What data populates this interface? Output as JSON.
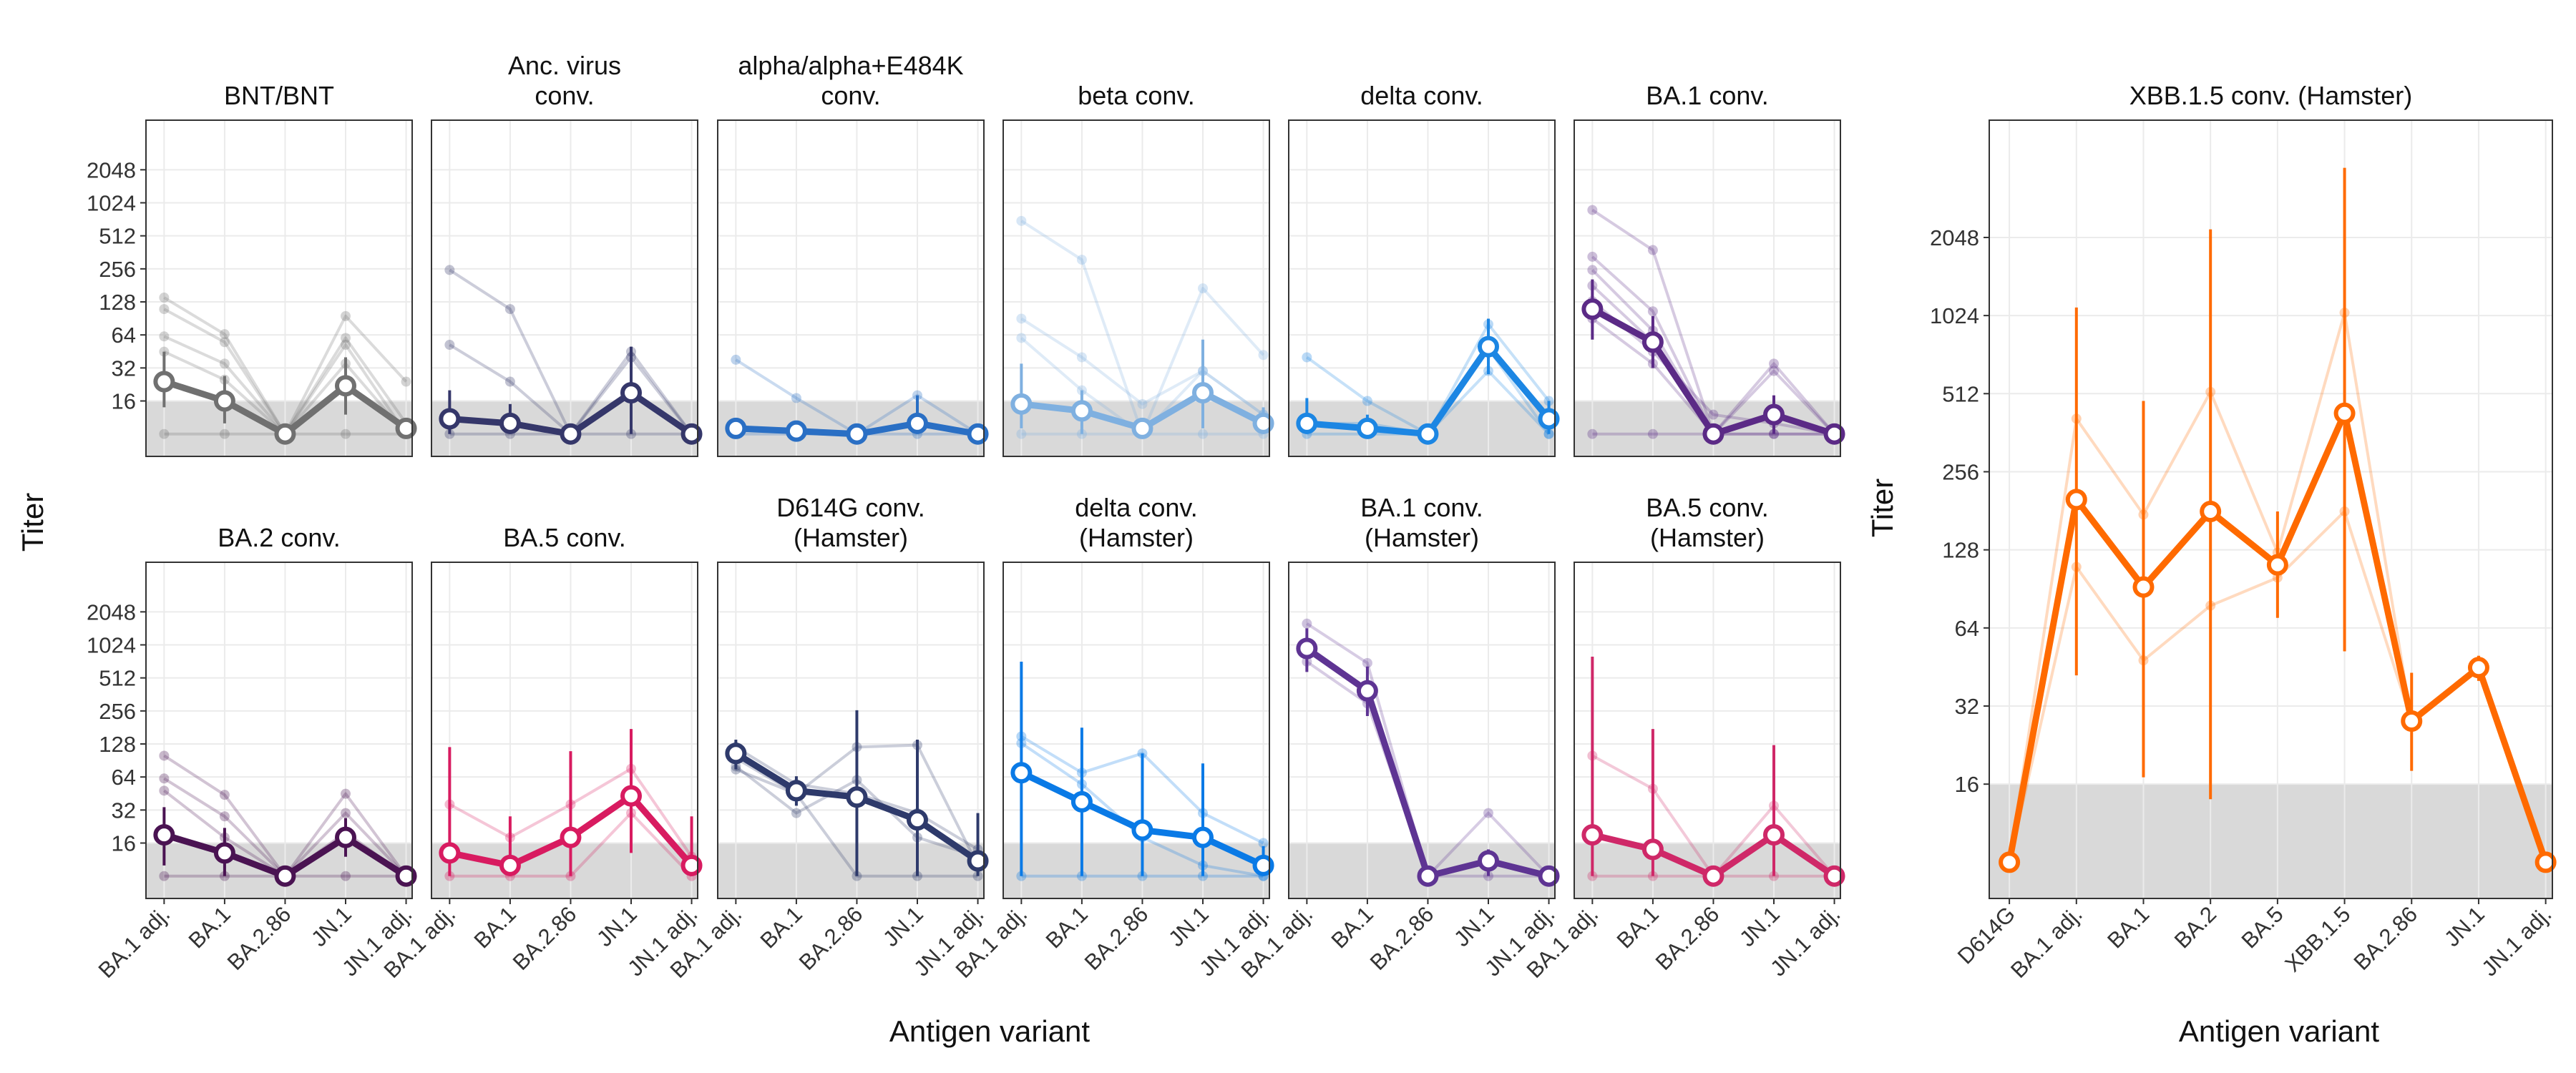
{
  "figure": {
    "y_axis_title": "Titer",
    "x_axis_title": "Antigen variant",
    "colors": {
      "panel_border": "#333333",
      "grid": "#ebebeb",
      "threshold_band": "#d9d9d9",
      "text": "#111111"
    }
  },
  "chart_data": [
    {
      "type": "line",
      "grid_id": "left-grid",
      "scale": "log2",
      "y_ticks": [
        16,
        32,
        64,
        128,
        256,
        512,
        1024,
        2048
      ],
      "y_range": [
        5,
        5800
      ],
      "threshold_below": 16,
      "categories": [
        "BA.1 adj.",
        "BA.1",
        "BA.2.86",
        "JN.1",
        "JN.1 adj."
      ],
      "panels": [
        {
          "title": "BNT/BNT",
          "color": "#707070",
          "mean": [
            24,
            16,
            8,
            22,
            9
          ],
          "err_low": [
            14,
            10,
            8,
            12,
            8
          ],
          "err_high": [
            45,
            27,
            9,
            40,
            11
          ],
          "individuals": [
            [
              140,
              65,
              8,
              95,
              24
            ],
            [
              110,
              55,
              8,
              60,
              10
            ],
            [
              62,
              35,
              8,
              52,
              8
            ],
            [
              45,
              25,
              8,
              35,
              8
            ],
            [
              8,
              8,
              8,
              8,
              8
            ]
          ]
        },
        {
          "title": "Anc. virus\nconv.",
          "color": "#35376a",
          "mean": [
            11,
            10,
            8,
            19,
            8
          ],
          "err_low": [
            8,
            8,
            8,
            8,
            8
          ],
          "err_high": [
            20,
            15,
            8,
            50,
            9
          ],
          "individuals": [
            [
              250,
              110,
              8,
              45,
              8
            ],
            [
              52,
              24,
              8,
              40,
              8
            ],
            [
              8,
              8,
              8,
              8,
              8
            ]
          ]
        },
        {
          "title": "alpha/alpha+E484K\nconv.",
          "color": "#2a6fc4",
          "mean": [
            9,
            8.5,
            8,
            10,
            8
          ],
          "err_low": [
            8,
            8,
            8,
            8,
            8
          ],
          "err_high": [
            10,
            9,
            8,
            18,
            8
          ],
          "individuals": [
            [
              38,
              17,
              8,
              18,
              8
            ],
            [
              8,
              8,
              8,
              8,
              8
            ]
          ]
        },
        {
          "title": "beta conv.",
          "color": "#7fb0e0",
          "mean": [
            15,
            13,
            9,
            19,
            10
          ],
          "err_low": [
            9,
            8,
            8,
            9,
            8
          ],
          "err_high": [
            35,
            20,
            11,
            58,
            14
          ],
          "individuals": [
            [
              700,
              310,
              8,
              170,
              42
            ],
            [
              90,
              40,
              15,
              30,
              12
            ],
            [
              60,
              20,
              8,
              30,
              12
            ],
            [
              8,
              8,
              8,
              8,
              8
            ]
          ]
        },
        {
          "title": "delta conv.",
          "color": "#1c86e3",
          "mean": [
            10,
            9,
            8,
            50,
            11
          ],
          "err_low": [
            8,
            8,
            8,
            28,
            8
          ],
          "err_high": [
            17,
            12,
            8,
            90,
            16
          ],
          "individuals": [
            [
              40,
              16,
              8,
              80,
              16
            ],
            [
              10,
              10,
              8,
              48,
              8
            ],
            [
              8,
              8,
              8,
              30,
              8
            ]
          ]
        },
        {
          "title": "BA.1 conv.",
          "color": "#5b2a86",
          "mean": [
            110,
            55,
            8,
            12,
            8
          ],
          "err_low": [
            58,
            32,
            8,
            8,
            8
          ],
          "err_high": [
            205,
            95,
            8,
            18,
            8
          ],
          "individuals": [
            [
              880,
              380,
              8,
              35,
              8
            ],
            [
              330,
              105,
              8,
              30,
              8
            ],
            [
              250,
              70,
              8,
              12,
              8
            ],
            [
              180,
              55,
              8,
              12,
              8
            ],
            [
              130,
              45,
              12,
              10,
              8
            ],
            [
              90,
              35,
              8,
              8,
              8
            ],
            [
              8,
              8,
              8,
              8,
              8
            ]
          ]
        },
        {
          "title": "BA.2 conv.",
          "color": "#4a1352",
          "mean": [
            19,
            13,
            8,
            18,
            8
          ],
          "err_low": [
            10,
            8,
            8,
            12,
            8
          ],
          "err_high": [
            34,
            22,
            8,
            27,
            8
          ],
          "individuals": [
            [
              100,
              44,
              8,
              45,
              8
            ],
            [
              62,
              28,
              8,
              30,
              8
            ],
            [
              48,
              18,
              8,
              20,
              8
            ],
            [
              8,
              8,
              8,
              8,
              8
            ]
          ]
        },
        {
          "title": "BA.5 conv.",
          "color": "#d81b60",
          "mean": [
            13,
            10,
            18,
            43,
            10
          ],
          "err_low": [
            8,
            8,
            8,
            13,
            8
          ],
          "err_high": [
            120,
            28,
            110,
            175,
            28
          ],
          "individuals": [
            [
              36,
              18,
              36,
              76,
              12
            ],
            [
              13,
              10,
              18,
              45,
              10
            ],
            [
              8,
              8,
              8,
              30,
              8
            ]
          ]
        },
        {
          "title": "D614G conv.\n(Hamster)",
          "color": "#2e3a6b",
          "mean": [
            105,
            48,
            42,
            26,
            11
          ],
          "err_low": [
            75,
            35,
            8,
            8,
            8
          ],
          "err_high": [
            140,
            65,
            260,
            140,
            30
          ],
          "individuals": [
            [
              120,
              55,
              45,
              30,
              14
            ],
            [
              95,
              45,
              120,
              125,
              10
            ],
            [
              75,
              45,
              8,
              8,
              8
            ],
            [
              80,
              30,
              60,
              18,
              12
            ]
          ]
        },
        {
          "title": "delta conv.\n(Hamster)",
          "color": "#0a7ae6",
          "mean": [
            70,
            38,
            21,
            18,
            10
          ],
          "err_low": [
            8,
            8,
            8,
            8,
            8
          ],
          "err_high": [
            720,
            180,
            105,
            85,
            15
          ],
          "individuals": [
            [
              150,
              70,
              105,
              30,
              16
            ],
            [
              130,
              55,
              18,
              10,
              8
            ],
            [
              8,
              8,
              8,
              8,
              8
            ]
          ]
        },
        {
          "title": "BA.1 conv.\n(Hamster)",
          "color": "#5e3493",
          "mean": [
            950,
            390,
            8,
            11,
            8
          ],
          "err_low": [
            580,
            230,
            8,
            8,
            8
          ],
          "err_high": [
            1450,
            650,
            8,
            14,
            8
          ],
          "individuals": [
            [
              1600,
              700,
              8,
              30,
              8
            ],
            [
              720,
              300,
              8,
              8,
              8
            ]
          ]
        },
        {
          "title": "BA.5 conv.\n(Hamster)",
          "color": "#cf2868",
          "mean": [
            19,
            14,
            8,
            19,
            8
          ],
          "err_low": [
            8,
            8,
            8,
            8,
            8
          ],
          "err_high": [
            800,
            175,
            8,
            125,
            8
          ],
          "individuals": [
            [
              100,
              50,
              8,
              35,
              8
            ],
            [
              8,
              8,
              8,
              8,
              8
            ]
          ]
        }
      ]
    },
    {
      "type": "line",
      "grid_id": "right-panel",
      "scale": "log2",
      "title": "XBB.1.5 conv. (Hamster)",
      "color": "#ff6a00",
      "y_ticks": [
        16,
        32,
        64,
        128,
        256,
        512,
        1024,
        2048
      ],
      "y_range": [
        5.8,
        5800
      ],
      "threshold_below": 16,
      "categories": [
        "D614G",
        "BA.1 adj.",
        "BA.1",
        "BA.2",
        "BA.5",
        "XBB.1.5",
        "BA.2.86",
        "JN.1",
        "JN.1 adj."
      ],
      "mean": [
        8,
        200,
        92,
        180,
        112,
        430,
        28,
        45,
        8
      ],
      "err_low": [
        8,
        42,
        17,
        14,
        70,
        52,
        18,
        40,
        8
      ],
      "err_high": [
        8,
        1100,
        480,
        2200,
        180,
        3800,
        43,
        50,
        8
      ],
      "individuals": [
        [
          8,
          410,
          175,
          520,
          125,
          1050,
          28,
          45,
          8
        ],
        [
          8,
          200,
          92,
          180,
          110,
          430,
          28,
          45,
          8
        ],
        [
          8,
          110,
          48,
          78,
          100,
          180,
          28,
          45,
          8
        ]
      ]
    }
  ]
}
